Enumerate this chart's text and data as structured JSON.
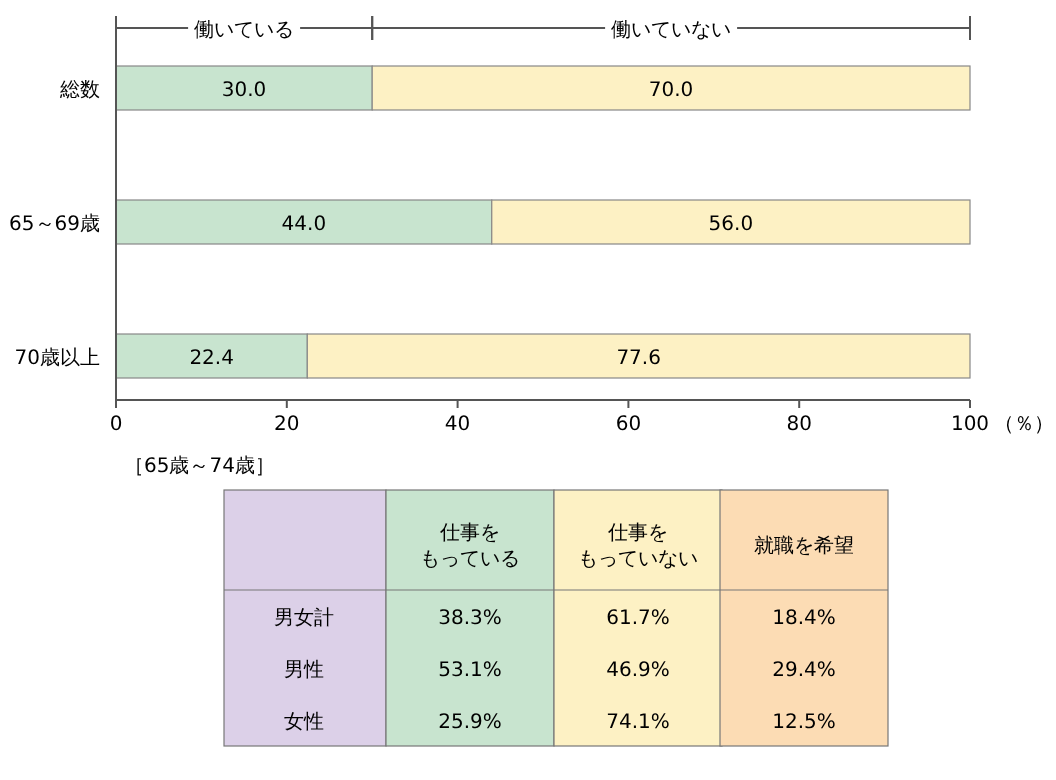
{
  "chart_data": {
    "type": "bar",
    "orientation": "horizontal",
    "stacked": true,
    "categories": [
      "総数",
      "65～69歳",
      "70歳以上"
    ],
    "series": [
      {
        "name": "働いている",
        "color": "#c8e4cf",
        "values": [
          30.0,
          44.0,
          22.4
        ],
        "value_labels": [
          "30.0",
          "44.0",
          "22.4"
        ]
      },
      {
        "name": "働いていない",
        "color": "#fdf1c4",
        "values": [
          70.0,
          56.0,
          77.6
        ],
        "value_labels": [
          "70.0",
          "56.0",
          "77.6"
        ]
      }
    ],
    "xlim": [
      0,
      100
    ],
    "xticks": [
      0,
      20,
      40,
      60,
      80,
      100
    ],
    "xlabel": "（％）",
    "legend": "top",
    "grid": false,
    "annotations": [
      "［65歳～74歳］",
      "仕事をもっている",
      "仕事をもっていない",
      "就職を希望",
      "男女計",
      "38.3%",
      "61.7%",
      "18.4%",
      "男性",
      "53.1%",
      "46.9%",
      "29.4%",
      "女性",
      "25.9%",
      "74.1%",
      "12.5%"
    ]
  }
}
